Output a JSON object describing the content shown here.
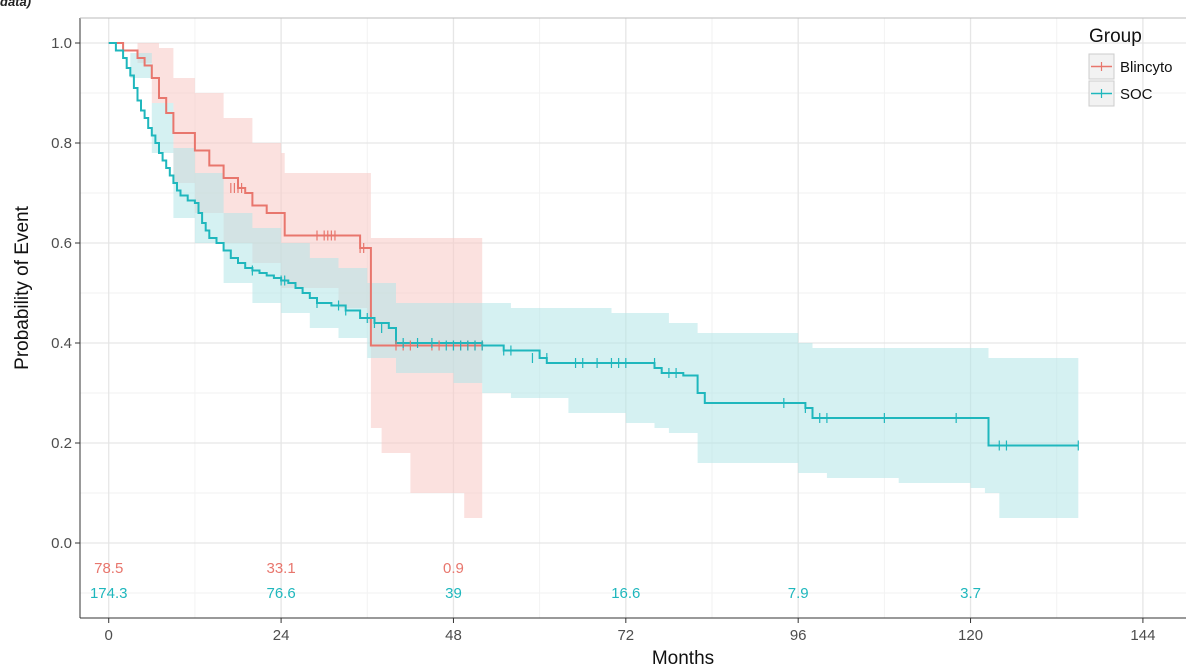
{
  "corner_text": "data)",
  "chart_data": {
    "type": "line",
    "subtype": "kaplan-meier",
    "title": "",
    "xlabel": "Months",
    "ylabel": "Probability of Event",
    "xlim": [
      -4,
      150
    ],
    "ylim": [
      -0.15,
      1.05
    ],
    "x_ticks": [
      0,
      24,
      48,
      72,
      96,
      120,
      144
    ],
    "y_ticks": [
      0.0,
      0.2,
      0.4,
      0.6,
      0.8,
      1.0
    ],
    "y_tick_labels": [
      "0.0",
      "0.2",
      "0.4",
      "0.6",
      "0.8",
      "1.0"
    ],
    "grid": true,
    "legend": {
      "title": "Group",
      "position": "top-right",
      "entries": [
        "Blincyto",
        "SOC"
      ]
    },
    "colors": {
      "Blincyto": "#e8766d",
      "SOC": "#1fb7bd",
      "Blincyto_band": "#f8c9c5",
      "SOC_band": "#b3e6e8"
    },
    "series": [
      {
        "name": "Blincyto",
        "color": "#e8766d",
        "steps": [
          [
            0,
            1.0
          ],
          [
            1,
            1.0
          ],
          [
            2,
            0.985
          ],
          [
            3,
            0.985
          ],
          [
            4,
            0.97
          ],
          [
            5,
            0.955
          ],
          [
            6,
            0.93
          ],
          [
            7,
            0.89
          ],
          [
            8,
            0.86
          ],
          [
            9,
            0.82
          ],
          [
            12,
            0.785
          ],
          [
            14,
            0.755
          ],
          [
            16,
            0.73
          ],
          [
            18,
            0.71
          ],
          [
            19,
            0.7
          ],
          [
            20,
            0.675
          ],
          [
            22,
            0.66
          ],
          [
            24,
            0.66
          ],
          [
            24.5,
            0.615
          ],
          [
            32,
            0.615
          ],
          [
            34,
            0.615
          ],
          [
            35,
            0.59
          ],
          [
            36,
            0.59
          ],
          [
            36.5,
            0.395
          ],
          [
            52,
            0.395
          ]
        ],
        "censor": [
          [
            17,
            0.71
          ],
          [
            17.5,
            0.71
          ],
          [
            18,
            0.71
          ],
          [
            18.5,
            0.71
          ],
          [
            29,
            0.615
          ],
          [
            30,
            0.615
          ],
          [
            30.5,
            0.615
          ],
          [
            31,
            0.615
          ],
          [
            31.5,
            0.615
          ],
          [
            35,
            0.59
          ],
          [
            35.5,
            0.59
          ],
          [
            40,
            0.395
          ],
          [
            41,
            0.395
          ],
          [
            42,
            0.395
          ],
          [
            45,
            0.395
          ],
          [
            46,
            0.395
          ],
          [
            48,
            0.395
          ],
          [
            49,
            0.395
          ],
          [
            50,
            0.395
          ],
          [
            51,
            0.395
          ],
          [
            52,
            0.395
          ]
        ],
        "ci_upper": [
          [
            0,
            1.0
          ],
          [
            4,
            1.0
          ],
          [
            7,
            0.99
          ],
          [
            9,
            0.93
          ],
          [
            12,
            0.9
          ],
          [
            16,
            0.85
          ],
          [
            20,
            0.8
          ],
          [
            24,
            0.78
          ],
          [
            24.5,
            0.74
          ],
          [
            36,
            0.74
          ],
          [
            36.5,
            0.61
          ],
          [
            52,
            0.61
          ]
        ],
        "ci_lower": [
          [
            0,
            1.0
          ],
          [
            4,
            0.96
          ],
          [
            6,
            0.88
          ],
          [
            9,
            0.72
          ],
          [
            12,
            0.66
          ],
          [
            16,
            0.6
          ],
          [
            20,
            0.56
          ],
          [
            24,
            0.51
          ],
          [
            32,
            0.47
          ],
          [
            36,
            0.44
          ],
          [
            36.5,
            0.23
          ],
          [
            38,
            0.18
          ],
          [
            42,
            0.1
          ],
          [
            49,
            0.1
          ],
          [
            49.5,
            0.05
          ],
          [
            52,
            0.05
          ]
        ]
      },
      {
        "name": "SOC",
        "color": "#1fb7bd",
        "steps": [
          [
            0,
            1.0
          ],
          [
            1,
            0.985
          ],
          [
            2,
            0.97
          ],
          [
            2.5,
            0.95
          ],
          [
            3,
            0.935
          ],
          [
            3.5,
            0.91
          ],
          [
            4,
            0.885
          ],
          [
            4.5,
            0.865
          ],
          [
            5,
            0.85
          ],
          [
            5.5,
            0.83
          ],
          [
            6,
            0.815
          ],
          [
            6.5,
            0.8
          ],
          [
            7,
            0.78
          ],
          [
            7.5,
            0.765
          ],
          [
            8,
            0.75
          ],
          [
            8.5,
            0.735
          ],
          [
            9,
            0.72
          ],
          [
            9.5,
            0.705
          ],
          [
            10,
            0.695
          ],
          [
            11,
            0.685
          ],
          [
            12,
            0.68
          ],
          [
            12.5,
            0.66
          ],
          [
            13,
            0.64
          ],
          [
            13.5,
            0.625
          ],
          [
            14,
            0.61
          ],
          [
            15,
            0.6
          ],
          [
            16,
            0.585
          ],
          [
            17,
            0.57
          ],
          [
            18,
            0.56
          ],
          [
            19,
            0.55
          ],
          [
            20,
            0.545
          ],
          [
            21,
            0.54
          ],
          [
            22,
            0.535
          ],
          [
            23,
            0.53
          ],
          [
            24,
            0.525
          ],
          [
            25,
            0.52
          ],
          [
            26,
            0.51
          ],
          [
            27,
            0.5
          ],
          [
            28,
            0.49
          ],
          [
            29,
            0.48
          ],
          [
            31,
            0.475
          ],
          [
            33,
            0.465
          ],
          [
            35,
            0.45
          ],
          [
            37,
            0.44
          ],
          [
            39,
            0.43
          ],
          [
            40,
            0.4
          ],
          [
            52,
            0.395
          ],
          [
            55,
            0.385
          ],
          [
            60,
            0.37
          ],
          [
            61,
            0.36
          ],
          [
            76,
            0.35
          ],
          [
            77,
            0.34
          ],
          [
            80,
            0.335
          ],
          [
            82,
            0.3
          ],
          [
            83,
            0.28
          ],
          [
            97,
            0.27
          ],
          [
            98,
            0.25
          ],
          [
            122,
            0.25
          ],
          [
            122.5,
            0.195
          ],
          [
            135,
            0.195
          ]
        ],
        "censor": [
          [
            20,
            0.545
          ],
          [
            24,
            0.525
          ],
          [
            24.5,
            0.525
          ],
          [
            29,
            0.48
          ],
          [
            32,
            0.475
          ],
          [
            33,
            0.465
          ],
          [
            36,
            0.45
          ],
          [
            37,
            0.44
          ],
          [
            38,
            0.43
          ],
          [
            41,
            0.4
          ],
          [
            43,
            0.4
          ],
          [
            45,
            0.4
          ],
          [
            47,
            0.395
          ],
          [
            48,
            0.395
          ],
          [
            49,
            0.395
          ],
          [
            50,
            0.395
          ],
          [
            51,
            0.395
          ],
          [
            52,
            0.395
          ],
          [
            55,
            0.385
          ],
          [
            56,
            0.385
          ],
          [
            59,
            0.37
          ],
          [
            61,
            0.37
          ],
          [
            65,
            0.36
          ],
          [
            66,
            0.36
          ],
          [
            68,
            0.36
          ],
          [
            70,
            0.36
          ],
          [
            71,
            0.36
          ],
          [
            72,
            0.36
          ],
          [
            76,
            0.36
          ],
          [
            78,
            0.34
          ],
          [
            79,
            0.34
          ],
          [
            94,
            0.28
          ],
          [
            97,
            0.27
          ],
          [
            99,
            0.25
          ],
          [
            100,
            0.25
          ],
          [
            108,
            0.25
          ],
          [
            118,
            0.25
          ],
          [
            124,
            0.195
          ],
          [
            125,
            0.195
          ],
          [
            135,
            0.195
          ]
        ],
        "ci_upper": [
          [
            0,
            1.0
          ],
          [
            3,
            0.98
          ],
          [
            6,
            0.88
          ],
          [
            9,
            0.79
          ],
          [
            12,
            0.74
          ],
          [
            16,
            0.66
          ],
          [
            20,
            0.63
          ],
          [
            24,
            0.6
          ],
          [
            28,
            0.57
          ],
          [
            32,
            0.55
          ],
          [
            36,
            0.52
          ],
          [
            40,
            0.48
          ],
          [
            52,
            0.48
          ],
          [
            56,
            0.47
          ],
          [
            70,
            0.46
          ],
          [
            76,
            0.46
          ],
          [
            78,
            0.44
          ],
          [
            82,
            0.42
          ],
          [
            96,
            0.4
          ],
          [
            98,
            0.39
          ],
          [
            120,
            0.39
          ],
          [
            122.5,
            0.37
          ],
          [
            135,
            0.37
          ]
        ],
        "ci_lower": [
          [
            0,
            1.0
          ],
          [
            3,
            0.93
          ],
          [
            6,
            0.78
          ],
          [
            9,
            0.65
          ],
          [
            12,
            0.6
          ],
          [
            16,
            0.52
          ],
          [
            20,
            0.48
          ],
          [
            24,
            0.46
          ],
          [
            28,
            0.43
          ],
          [
            32,
            0.41
          ],
          [
            36,
            0.37
          ],
          [
            40,
            0.34
          ],
          [
            48,
            0.32
          ],
          [
            52,
            0.3
          ],
          [
            56,
            0.29
          ],
          [
            64,
            0.26
          ],
          [
            72,
            0.24
          ],
          [
            76,
            0.23
          ],
          [
            78,
            0.22
          ],
          [
            82,
            0.16
          ],
          [
            96,
            0.14
          ],
          [
            100,
            0.13
          ],
          [
            110,
            0.12
          ],
          [
            120,
            0.11
          ],
          [
            122,
            0.1
          ],
          [
            124,
            0.05
          ],
          [
            135,
            0.05
          ]
        ]
      }
    ],
    "risk_table": [
      {
        "series": "Blincyto",
        "color": "#e8766d",
        "y": -0.05,
        "entries": [
          [
            0,
            "78.5"
          ],
          [
            24,
            "33.1"
          ],
          [
            48,
            "0.9"
          ]
        ]
      },
      {
        "series": "SOC",
        "color": "#1fb7bd",
        "y": -0.1,
        "entries": [
          [
            0,
            "174.3"
          ],
          [
            24,
            "76.6"
          ],
          [
            48,
            "39"
          ],
          [
            72,
            "16.6"
          ],
          [
            96,
            "7.9"
          ],
          [
            120,
            "3.7"
          ]
        ]
      }
    ]
  }
}
